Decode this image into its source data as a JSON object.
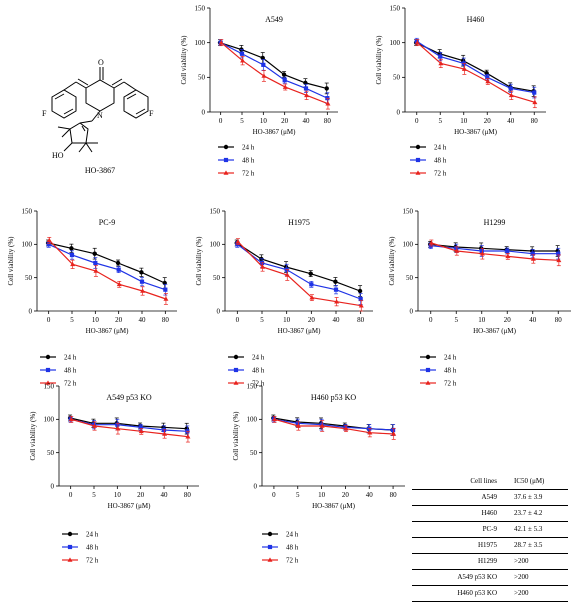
{
  "molecule": {
    "name": "HO-3867",
    "atom_labels": {
      "oxygen": "O",
      "fluorine": "F",
      "nitrogen": "N",
      "hydroxyl": "HO"
    }
  },
  "colors": {
    "24h": "#000000",
    "48h": "#1f33e6",
    "72h": "#e8231e"
  },
  "table": {
    "headers": [
      "Cell lines",
      "IC50 (μM)"
    ],
    "rows": [
      [
        "A549",
        "37.6 ± 3.9"
      ],
      [
        "H460",
        "23.7 ± 4.2"
      ],
      [
        "PC-9",
        "42.1 ± 5.3"
      ],
      [
        "H1975",
        "28.7 ± 3.5"
      ],
      [
        "H1299",
        ">200"
      ],
      [
        "A549 p53 KO",
        ">200"
      ],
      [
        "H460 p53 KO",
        ">200"
      ]
    ]
  },
  "chart_data": [
    {
      "type": "line",
      "title": "A549",
      "xlabel": "HO-3867 (μM)",
      "ylabel": "Cell viability (%)",
      "categories": [
        "0",
        "5",
        "10",
        "20",
        "40",
        "80"
      ],
      "ylim": [
        0,
        150
      ],
      "yticks": [
        0,
        50,
        100,
        150
      ],
      "series": [
        {
          "name": "24 h",
          "values": [
            100,
            90,
            78,
            54,
            42,
            34
          ]
        },
        {
          "name": "48 h",
          "values": [
            100,
            84,
            68,
            46,
            34,
            20
          ]
        },
        {
          "name": "72 h",
          "values": [
            100,
            74,
            52,
            36,
            24,
            12
          ]
        }
      ]
    },
    {
      "type": "line",
      "title": "H460",
      "xlabel": "HO-3867 (μM)",
      "ylabel": "Cell viability (%)",
      "categories": [
        "0",
        "5",
        "10",
        "20",
        "40",
        "80"
      ],
      "ylim": [
        0,
        150
      ],
      "yticks": [
        0,
        50,
        100,
        150
      ],
      "series": [
        {
          "name": "24 h",
          "values": [
            100,
            84,
            74,
            56,
            36,
            30
          ]
        },
        {
          "name": "48 h",
          "values": [
            102,
            80,
            70,
            50,
            34,
            28
          ]
        },
        {
          "name": "72 h",
          "values": [
            100,
            70,
            62,
            44,
            24,
            14
          ]
        }
      ]
    },
    {
      "type": "line",
      "title": "PC-9",
      "xlabel": "HO-3867 (μM)",
      "ylabel": "Cell viability (%)",
      "categories": [
        "0",
        "5",
        "10",
        "20",
        "40",
        "80"
      ],
      "ylim": [
        0,
        150
      ],
      "yticks": [
        0,
        50,
        100,
        150
      ],
      "series": [
        {
          "name": "24 h",
          "values": [
            102,
            94,
            86,
            72,
            58,
            42
          ]
        },
        {
          "name": "48 h",
          "values": [
            100,
            84,
            72,
            62,
            44,
            32
          ]
        },
        {
          "name": "72 h",
          "values": [
            106,
            70,
            60,
            40,
            30,
            18
          ]
        }
      ]
    },
    {
      "type": "line",
      "title": "H1975",
      "xlabel": "HO-3867 (μM)",
      "ylabel": "Cell viability (%)",
      "categories": [
        "0",
        "5",
        "10",
        "20",
        "40",
        "80"
      ],
      "ylim": [
        0,
        150
      ],
      "yticks": [
        0,
        50,
        100,
        150
      ],
      "series": [
        {
          "name": "24 h",
          "values": [
            102,
            78,
            66,
            56,
            44,
            30
          ]
        },
        {
          "name": "48 h",
          "values": [
            100,
            72,
            62,
            40,
            32,
            18
          ]
        },
        {
          "name": "72 h",
          "values": [
            104,
            66,
            54,
            20,
            14,
            8
          ]
        }
      ]
    },
    {
      "type": "line",
      "title": "H1299",
      "xlabel": "HO-3867 (μM)",
      "ylabel": "Cell viability (%)",
      "categories": [
        "0",
        "5",
        "10",
        "20",
        "40",
        "80"
      ],
      "ylim": [
        0,
        150
      ],
      "yticks": [
        0,
        50,
        100,
        150
      ],
      "series": [
        {
          "name": "24 h",
          "values": [
            100,
            96,
            94,
            92,
            90,
            90
          ]
        },
        {
          "name": "48 h",
          "values": [
            98,
            94,
            90,
            90,
            86,
            86
          ]
        },
        {
          "name": "72 h",
          "values": [
            102,
            90,
            86,
            82,
            78,
            76
          ]
        }
      ]
    },
    {
      "type": "line",
      "title": "A549 p53 KO",
      "xlabel": "HO-3867 (μM)",
      "ylabel": "Cell viability (%)",
      "categories": [
        "0",
        "5",
        "10",
        "20",
        "40",
        "80"
      ],
      "ylim": [
        0,
        150
      ],
      "yticks": [
        0,
        50,
        100,
        150
      ],
      "series": [
        {
          "name": "24 h",
          "values": [
            102,
            94,
            94,
            90,
            88,
            86
          ]
        },
        {
          "name": "48 h",
          "values": [
            100,
            92,
            92,
            88,
            84,
            82
          ]
        },
        {
          "name": "72 h",
          "values": [
            100,
            90,
            86,
            82,
            78,
            74
          ]
        }
      ]
    },
    {
      "type": "line",
      "title": "H460 p53 KO",
      "xlabel": "HO-3867 (μM)",
      "ylabel": "Cell viability (%)",
      "categories": [
        "0",
        "5",
        "10",
        "20",
        "40",
        "80"
      ],
      "ylim": [
        0,
        150
      ],
      "yticks": [
        0,
        50,
        100,
        150
      ],
      "series": [
        {
          "name": "24 h",
          "values": [
            102,
            96,
            94,
            90,
            86,
            84
          ]
        },
        {
          "name": "48 h",
          "values": [
            100,
            94,
            92,
            88,
            86,
            84
          ]
        },
        {
          "name": "72 h",
          "values": [
            100,
            90,
            90,
            86,
            80,
            78
          ]
        }
      ]
    }
  ]
}
